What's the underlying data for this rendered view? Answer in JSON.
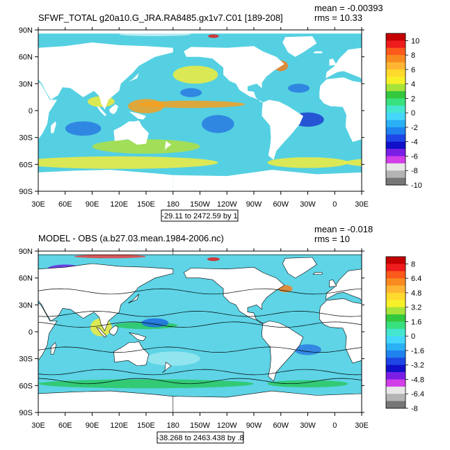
{
  "panels": [
    {
      "title": "SFWF_TOTAL g20a10.G_JRA.RA8485.gx1v7.C01 [189-208]",
      "mean_label": "mean = -0.00393",
      "rms_label": "rms = 10.33",
      "range_label": "-29.11 to 2472.59 by 1",
      "contour_lines": false,
      "colorbar_labels": [
        "10",
        "8",
        "6",
        "4",
        "2",
        "0",
        "-2",
        "-4",
        "-6",
        "-8",
        "-10"
      ],
      "field": {
        "background": "#55d0e2",
        "blobs": [
          {
            "lon": 120,
            "lat": -58,
            "rx": 110,
            "ry": 7,
            "color": "#f2ec3c"
          },
          {
            "lon": 330,
            "lat": -58,
            "rx": 45,
            "ry": 6,
            "color": "#f2ec3c"
          },
          {
            "lon": 150,
            "lat": -40,
            "rx": 60,
            "ry": 8,
            "color": "#b0e040"
          },
          {
            "lon": 200,
            "lat": 7,
            "rx": 60,
            "ry": 4,
            "color": "#f5a020"
          },
          {
            "lon": 150,
            "lat": 5,
            "rx": 20,
            "ry": 8,
            "color": "#f5a020"
          },
          {
            "lon": 200,
            "lat": 20,
            "rx": 12,
            "ry": 5,
            "color": "#2a7ae0"
          },
          {
            "lon": 230,
            "lat": -15,
            "rx": 18,
            "ry": 10,
            "color": "#2a7ae0"
          },
          {
            "lon": 80,
            "lat": -20,
            "rx": 20,
            "ry": 8,
            "color": "#2a7ae0"
          },
          {
            "lon": 330,
            "lat": -10,
            "rx": 18,
            "ry": 8,
            "color": "#1d3fd0"
          },
          {
            "lon": 320,
            "lat": 25,
            "rx": 12,
            "ry": 5,
            "color": "#2a7ae0"
          },
          {
            "lon": 205,
            "lat": 40,
            "rx": 25,
            "ry": 10,
            "color": "#f2ec3c"
          },
          {
            "lon": 100,
            "lat": 10,
            "rx": 15,
            "ry": 6,
            "color": "#f2ec3c"
          },
          {
            "lon": 225,
            "lat": 83,
            "rx": 6,
            "ry": 2,
            "color": "#e02020"
          },
          {
            "lon": 300,
            "lat": 50,
            "rx": 8,
            "ry": 6,
            "color": "#f08020"
          },
          {
            "lon": 60,
            "lat": 45,
            "rx": 20,
            "ry": 6,
            "color": "#88e070"
          },
          {
            "lon": 160,
            "lat": 85,
            "rx": 40,
            "ry": 2,
            "color": "#c9eff2"
          }
        ]
      }
    },
    {
      "title": "MODEL - OBS (a.b27.03.mean.1984-2006.nc)",
      "mean_label": "mean = -0.018",
      "rms_label": "rms = 10",
      "range_label": "-38.268 to 2463.438 by .8",
      "contour_lines": true,
      "colorbar_labels": [
        "8",
        "6.4",
        "4.8",
        "3.2",
        "1.6",
        "0",
        "-1.6",
        "-3.2",
        "-4.8",
        "-6.4",
        "-8"
      ],
      "field": {
        "background": "#5ed4e6",
        "blobs": [
          {
            "lon": 150,
            "lat": -58,
            "rx": 120,
            "ry": 5,
            "color": "#2ac860"
          },
          {
            "lon": 330,
            "lat": -58,
            "rx": 45,
            "ry": 4,
            "color": "#2ac860"
          },
          {
            "lon": 150,
            "lat": 7,
            "rx": 35,
            "ry": 4,
            "color": "#2ac860"
          },
          {
            "lon": 100,
            "lat": 5,
            "rx": 12,
            "ry": 10,
            "color": "#f2ec3c"
          },
          {
            "lon": 60,
            "lat": 70,
            "rx": 20,
            "ry": 5,
            "color": "#6a28e0"
          },
          {
            "lon": 225,
            "lat": 81,
            "rx": 7,
            "ry": 2,
            "color": "#e02020"
          },
          {
            "lon": 305,
            "lat": 48,
            "rx": 8,
            "ry": 4,
            "color": "#f08020"
          },
          {
            "lon": 160,
            "lat": 10,
            "rx": 15,
            "ry": 5,
            "color": "#1d6ce0"
          },
          {
            "lon": 330,
            "lat": -20,
            "rx": 15,
            "ry": 6,
            "color": "#2a7ae0"
          },
          {
            "lon": 180,
            "lat": -30,
            "rx": 30,
            "ry": 8,
            "color": "#9ae8f0"
          },
          {
            "lon": 110,
            "lat": 84,
            "rx": 40,
            "ry": 2,
            "color": "#e84040"
          }
        ]
      }
    }
  ],
  "axes": {
    "x_tick_labels": [
      "30E",
      "60E",
      "90E",
      "120E",
      "150E",
      "180",
      "150W",
      "120W",
      "90W",
      "60W",
      "30W",
      "0",
      "30E"
    ],
    "x_tick_lons": [
      30,
      60,
      90,
      120,
      150,
      180,
      210,
      240,
      270,
      300,
      330,
      360,
      390
    ],
    "y_tick_labels": [
      "90N",
      "60N",
      "30N",
      "0",
      "30S",
      "60S",
      "90S"
    ],
    "y_tick_lats": [
      90,
      60,
      30,
      0,
      -30,
      -60,
      -90
    ],
    "lon_range": [
      30,
      390
    ],
    "lat_range": [
      -90,
      90
    ]
  },
  "colorbar": {
    "colors": [
      "#c40000",
      "#ee1c1c",
      "#fb5a1b",
      "#f98a20",
      "#ffb533",
      "#ffd92e",
      "#f7f029",
      "#a7e339",
      "#33c83d",
      "#39e07e",
      "#45e6cf",
      "#44d7fb",
      "#2bb0f5",
      "#1f82ef",
      "#1e46e6",
      "#1010c8",
      "#7a1ee6",
      "#d23ee8",
      "#e7e7e7",
      "#b4b4b4",
      "#767676"
    ]
  },
  "land_color": "#ffffff"
}
